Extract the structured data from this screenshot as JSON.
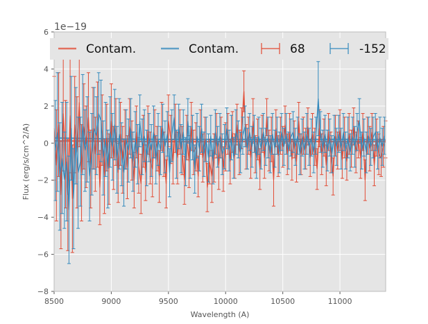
{
  "chart_data": {
    "type": "line",
    "title": "",
    "xlabel": "Wavelength (A)",
    "ylabel": "Flux (erg/s/cm^2/A)",
    "y_offset_label": "1e−19",
    "xlim": [
      8500,
      11400
    ],
    "ylim": [
      -8,
      6
    ],
    "x_ticks": [
      8500,
      9000,
      9500,
      10000,
      10500,
      11000
    ],
    "y_ticks": [
      -8,
      -6,
      -4,
      -2,
      0,
      2,
      4,
      6
    ],
    "grid": true,
    "legend_position": "top",
    "colors": {
      "red": "#E24A33",
      "blue": "#348ABD",
      "plot_bg": "#E5E5E5",
      "grid": "#FFFFFF"
    },
    "series": [
      {
        "name": "Contam.",
        "kind": "line",
        "color": "#E24A33",
        "x": [
          8500,
          9000,
          9500,
          10000,
          10500,
          11000,
          11400
        ],
        "y": [
          0.12,
          0.1,
          0.08,
          0.08,
          0.1,
          0.08,
          0.08
        ]
      },
      {
        "name": "Contam.",
        "kind": "line",
        "color": "#348ABD",
        "x": [
          8500,
          9000,
          9500,
          10000,
          10500,
          11000,
          11400
        ],
        "y": [
          0.28,
          0.22,
          0.2,
          0.2,
          0.2,
          0.2,
          0.18
        ]
      },
      {
        "name": "68",
        "kind": "errorbar",
        "color": "#E24A33",
        "x": [
          8500,
          8520,
          8540,
          8560,
          8580,
          8600,
          8620,
          8640,
          8660,
          8680,
          8700,
          8720,
          8740,
          8760,
          8780,
          8800,
          8820,
          8840,
          8860,
          8880,
          8900,
          8920,
          8940,
          8960,
          8980,
          9000,
          9020,
          9040,
          9060,
          9080,
          9100,
          9120,
          9140,
          9160,
          9180,
          9200,
          9220,
          9240,
          9260,
          9280,
          9300,
          9320,
          9340,
          9360,
          9380,
          9400,
          9420,
          9440,
          9460,
          9480,
          9500,
          9520,
          9540,
          9560,
          9580,
          9600,
          9620,
          9640,
          9660,
          9680,
          9700,
          9720,
          9740,
          9760,
          9780,
          9800,
          9820,
          9840,
          9860,
          9880,
          9900,
          9920,
          9940,
          9960,
          9980,
          10000,
          10020,
          10040,
          10060,
          10080,
          10100,
          10120,
          10140,
          10160,
          10180,
          10200,
          10220,
          10240,
          10260,
          10280,
          10300,
          10320,
          10340,
          10360,
          10380,
          10400,
          10420,
          10440,
          10460,
          10480,
          10500,
          10520,
          10540,
          10560,
          10580,
          10600,
          10620,
          10640,
          10660,
          10680,
          10700,
          10720,
          10740,
          10760,
          10780,
          10800,
          10820,
          10840,
          10860,
          10880,
          10900,
          10920,
          10940,
          10960,
          10980,
          11000,
          11020,
          11040,
          11060,
          11080,
          11100,
          11120,
          11140,
          11160,
          11180,
          11200,
          11220,
          11240,
          11260,
          11280,
          11300,
          11320,
          11340,
          11360,
          11380,
          11400
        ],
        "y": [
          0.8,
          -1.2,
          1.0,
          -2.8,
          1.6,
          -0.6,
          -2.8,
          1.5,
          -3.0,
          1.0,
          -0.5,
          2.2,
          -1.6,
          0.9,
          -0.2,
          1.4,
          -1.4,
          0.8,
          -0.6,
          1.0,
          -2.4,
          0.7,
          -1.8,
          0.3,
          -1.4,
          1.2,
          -0.8,
          0.6,
          -1.6,
          0.5,
          -0.9,
          0.2,
          -1.3,
          0.9,
          -0.4,
          -2.0,
          0.6,
          -1.2,
          -2.2,
          0.1,
          -1.6,
          0.7,
          -0.8,
          -1.4,
          0.5,
          -0.3,
          -1.8,
          0.9,
          -0.6,
          -2.2,
          1.2,
          0.2,
          -1.0,
          0.8,
          -0.8,
          0.6,
          -0.4,
          -2.0,
          0.3,
          -1.0,
          0.9,
          -0.5,
          -0.2,
          -1.8,
          0.6,
          -0.8,
          0.2,
          -2.4,
          -1.0,
          -1.8,
          -0.8,
          0.4,
          -1.2,
          0.3,
          -1.4,
          -0.2,
          0.5,
          -1.0,
          0.6,
          -0.7,
          1.0,
          -0.5,
          0.8,
          2.8,
          -0.2,
          0.4,
          -0.8,
          1.2,
          -0.6,
          0.2,
          -1.4,
          0.5,
          -0.8,
          1.4,
          -0.4,
          0.2,
          -2.0,
          0.8,
          -0.7,
          0.4,
          -0.2,
          1.0,
          -0.6,
          0.6,
          -0.9,
          0.2,
          -1.0,
          1.2,
          -0.6,
          0.4,
          -0.3,
          0.9,
          -0.8,
          0.5,
          -0.2,
          -1.4,
          0.8,
          -0.6,
          0.3,
          -1.2,
          0.6,
          -0.5,
          -1.8,
          0.4,
          -0.4,
          0.7,
          -0.9,
          0.3,
          -1.0,
          0.5,
          -0.3,
          0.9,
          -0.5,
          0.2,
          -0.8,
          0.6,
          -2.0,
          0.4,
          -0.3,
          0.6,
          -1.2,
          0.3,
          -0.6,
          -0.8,
          -0.2,
          0.2
        ],
        "err": [
          2.8,
          3.0,
          2.8,
          2.9,
          3.1,
          2.9,
          3.0,
          3.1,
          2.9,
          2.6,
          3.0,
          2.4,
          2.6,
          2.3,
          2.2,
          2.4,
          2.1,
          2.2,
          2.0,
          2.3,
          2.0,
          1.9,
          2.0,
          1.8,
          1.9,
          2.0,
          1.7,
          1.8,
          1.6,
          1.7,
          1.8,
          1.6,
          1.7,
          1.5,
          1.6,
          1.5,
          1.4,
          1.5,
          1.6,
          1.4,
          1.5,
          1.3,
          1.4,
          1.5,
          1.3,
          1.2,
          1.4,
          1.3,
          1.2,
          1.3,
          1.4,
          1.3,
          1.2,
          1.3,
          1.4,
          1.2,
          1.3,
          1.3,
          1.2,
          1.4,
          1.3,
          1.2,
          1.3,
          1.1,
          1.2,
          1.3,
          1.2,
          1.3,
          1.2,
          1.4,
          1.3,
          1.2,
          1.3,
          1.1,
          1.2,
          1.3,
          1.1,
          1.2,
          1.1,
          1.2,
          1.1,
          1.2,
          1.1,
          1.1,
          1.2,
          1.0,
          1.1,
          1.2,
          1.0,
          1.1,
          1.1,
          1.0,
          1.1,
          1.0,
          1.1,
          1.2,
          1.4,
          1.0,
          1.1,
          1.0,
          1.1,
          1.0,
          1.1,
          1.0,
          1.1,
          1.0,
          1.1,
          1.0,
          1.1,
          1.0,
          1.1,
          1.0,
          1.0,
          1.1,
          1.0,
          1.1,
          1.0,
          1.1,
          1.0,
          1.1,
          1.0,
          1.1,
          1.0,
          1.1,
          1.0,
          1.1,
          1.0,
          1.1,
          1.0,
          1.1,
          1.0,
          1.0,
          1.1,
          1.0,
          1.1,
          1.0,
          1.1,
          1.0,
          1.2,
          1.0,
          1.1,
          1.0,
          1.1,
          1.0,
          1.1,
          1.0
        ]
      },
      {
        "name": "-152",
        "kind": "errorbar",
        "color": "#348ABD",
        "x": [
          8510,
          8530,
          8550,
          8570,
          8590,
          8610,
          8630,
          8650,
          8670,
          8690,
          8710,
          8730,
          8750,
          8770,
          8790,
          8810,
          8830,
          8850,
          8870,
          8890,
          8910,
          8930,
          8950,
          8970,
          8990,
          9010,
          9030,
          9050,
          9070,
          9090,
          9110,
          9130,
          9150,
          9170,
          9190,
          9210,
          9230,
          9250,
          9270,
          9290,
          9310,
          9330,
          9350,
          9370,
          9390,
          9410,
          9430,
          9450,
          9470,
          9490,
          9510,
          9530,
          9550,
          9570,
          9590,
          9610,
          9630,
          9650,
          9670,
          9690,
          9710,
          9730,
          9750,
          9770,
          9790,
          9810,
          9830,
          9850,
          9870,
          9890,
          9910,
          9930,
          9950,
          9970,
          9990,
          10010,
          10030,
          10050,
          10070,
          10090,
          10110,
          10130,
          10150,
          10170,
          10190,
          10210,
          10230,
          10250,
          10270,
          10290,
          10310,
          10330,
          10350,
          10370,
          10390,
          10410,
          10430,
          10450,
          10470,
          10490,
          10510,
          10530,
          10550,
          10570,
          10590,
          10610,
          10630,
          10650,
          10670,
          10690,
          10710,
          10730,
          10750,
          10770,
          10790,
          10810,
          10830,
          10850,
          10870,
          10890,
          10910,
          10930,
          10950,
          10970,
          10990,
          11010,
          11030,
          11050,
          11070,
          11090,
          11110,
          11130,
          11150,
          11170,
          11190,
          11210,
          11230,
          11250,
          11270,
          11290,
          11310,
          11330,
          11350,
          11370,
          11390
        ],
        "y": [
          -0.4,
          0.6,
          -1.8,
          -0.8,
          -2.0,
          -1.0,
          -3.6,
          0.8,
          -3.0,
          0.4,
          -1.6,
          -1.0,
          1.0,
          -0.4,
          0.2,
          -1.8,
          -0.6,
          0.8,
          0.4,
          1.6,
          1.2,
          -0.8,
          0.2,
          -1.4,
          0.6,
          -0.2,
          1.0,
          -0.9,
          0.5,
          -0.6,
          -1.6,
          0.2,
          -0.4,
          0.8,
          -1.0,
          0.2,
          -0.6,
          1.2,
          -0.2,
          0.4,
          -0.8,
          0.3,
          -0.4,
          0.6,
          -0.9,
          0.2,
          -0.4,
          0.8,
          -0.2,
          0.5,
          -1.6,
          0.4,
          1.4,
          -0.6,
          0.9,
          -0.3,
          0.6,
          -1.0,
          1.2,
          -0.5,
          0.3,
          -1.4,
          0.4,
          -0.3,
          0.8,
          -0.6,
          0.2,
          -0.8,
          0.4,
          -1.0,
          0.6,
          -0.2,
          0.4,
          -0.6,
          -0.2,
          0.8,
          -0.4,
          0.3,
          -0.8,
          0.6,
          0.2,
          -0.5,
          0.4,
          0.9,
          -0.3,
          0.6,
          -0.2,
          0.5,
          -0.8,
          0.4,
          -0.3,
          0.6,
          -0.2,
          0.3,
          -0.6,
          0.5,
          -0.3,
          0.4,
          -0.5,
          0.6,
          -0.2,
          0.5,
          -0.4,
          0.3,
          0.6,
          -0.2,
          0.4,
          -0.6,
          0.3,
          -0.4,
          0.5,
          -0.2,
          0.3,
          -0.5,
          0.4,
          2.4,
          0.6,
          -0.3,
          0.5,
          -0.4,
          0.3,
          -0.6,
          0.4,
          -0.2,
          0.5,
          -0.3,
          0.6,
          -0.4,
          0.3,
          -0.5,
          0.4,
          -0.2,
          0.6,
          1.2,
          -0.4,
          0.3,
          -0.5,
          0.4,
          -0.2,
          0.3,
          0.6,
          -0.4,
          0.3,
          -0.2,
          0.4
        ],
        "err": [
          2.7,
          3.2,
          2.9,
          3.0,
          2.6,
          3.2,
          2.9,
          2.8,
          2.7,
          2.6,
          3.0,
          2.4,
          2.7,
          2.2,
          2.3,
          2.4,
          2.2,
          2.2,
          2.1,
          2.2,
          2.2,
          2.0,
          2.0,
          2.1,
          1.9,
          1.8,
          1.9,
          1.8,
          1.9,
          1.7,
          1.8,
          1.6,
          1.7,
          1.6,
          1.6,
          1.5,
          1.6,
          1.4,
          1.5,
          1.4,
          1.5,
          1.3,
          1.4,
          1.4,
          1.3,
          1.4,
          1.3,
          1.3,
          1.4,
          1.2,
          1.3,
          1.4,
          1.2,
          1.3,
          1.2,
          1.3,
          1.2,
          1.3,
          1.2,
          1.4,
          1.2,
          1.3,
          1.2,
          1.2,
          1.3,
          1.2,
          1.2,
          1.3,
          1.1,
          1.2,
          1.2,
          1.1,
          1.2,
          1.1,
          1.2,
          1.1,
          1.1,
          1.2,
          1.1,
          1.2,
          1.0,
          1.1,
          1.0,
          1.1,
          1.1,
          1.0,
          1.1,
          1.0,
          1.1,
          1.0,
          1.1,
          1.0,
          1.0,
          1.1,
          1.0,
          1.1,
          1.0,
          1.0,
          1.1,
          1.0,
          1.0,
          1.1,
          1.0,
          1.0,
          1.1,
          1.0,
          1.0,
          1.1,
          1.0,
          1.0,
          1.1,
          1.0,
          1.0,
          1.1,
          1.0,
          2.0,
          1.1,
          1.0,
          1.0,
          1.1,
          1.0,
          1.0,
          1.1,
          1.0,
          1.0,
          1.1,
          1.0,
          1.0,
          1.1,
          1.0,
          1.0,
          1.1,
          1.0,
          1.2,
          1.0,
          1.0,
          1.1,
          1.0,
          1.0,
          1.1,
          1.0,
          1.0,
          1.1,
          1.0,
          1.0
        ]
      }
    ]
  }
}
